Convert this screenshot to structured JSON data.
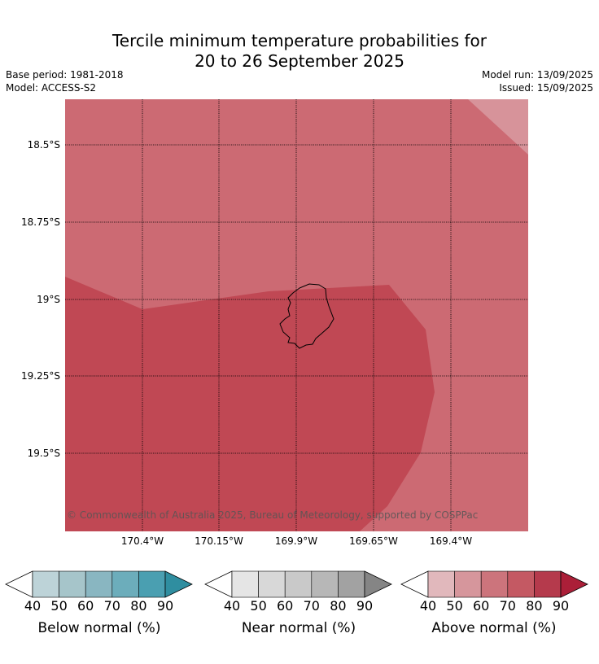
{
  "title": {
    "line1": "Tercile minimum temperature probabilities for",
    "line2": "20 to 26 September 2025"
  },
  "meta": {
    "base_period": "Base period: 1981-2018",
    "model": "Model: ACCESS-S2",
    "model_run": "Model run: 13/09/2025",
    "issued": "Issued: 15/09/2025"
  },
  "map": {
    "lat_labels": [
      "18.5°S",
      "18.75°S",
      "19°S",
      "19.25°S",
      "19.5°S"
    ],
    "lon_labels": [
      "170.4°W",
      "170.15°W",
      "169.9°W",
      "169.65°W",
      "169.4°W"
    ],
    "copyright": "© Commonwealth of Australia 2025, Bureau of Meteorology, supported by COSPPac",
    "colors": {
      "above_60_70": "#cc6a73",
      "above_70_80": "#c04854",
      "above_50_60": "#d7939a"
    }
  },
  "colorbars": [
    {
      "title": "Below normal (%)",
      "ticks": [
        "40",
        "50",
        "60",
        "70",
        "80",
        "90"
      ],
      "colors": [
        "#bdd3d8",
        "#a6c5ca",
        "#89b6c1",
        "#6cadbb",
        "#4a9fb1",
        "#2f8ea0"
      ]
    },
    {
      "title": "Near normal (%)",
      "ticks": [
        "40",
        "50",
        "60",
        "70",
        "80",
        "90"
      ],
      "colors": [
        "#e5e5e5",
        "#d8d8d8",
        "#c9c9c9",
        "#b7b7b7",
        "#a2a2a2",
        "#858585"
      ]
    },
    {
      "title": "Above normal (%)",
      "ticks": [
        "40",
        "50",
        "60",
        "70",
        "80",
        "90"
      ],
      "colors": [
        "#e1b8bc",
        "#d6969c",
        "#cc747c",
        "#c45963",
        "#b53a4c",
        "#ab1f38"
      ]
    }
  ]
}
